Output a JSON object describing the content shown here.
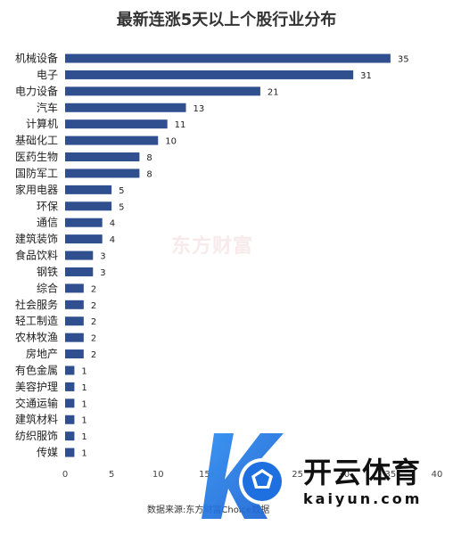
{
  "chart_data": {
    "type": "bar",
    "orientation": "horizontal",
    "title": "最新连涨5天以上个股行业分布",
    "categories": [
      "机械设备",
      "电子",
      "电力设备",
      "汽车",
      "计算机",
      "基础化工",
      "医药生物",
      "国防军工",
      "家用电器",
      "环保",
      "通信",
      "建筑装饰",
      "食品饮料",
      "钢铁",
      "综合",
      "社会服务",
      "轻工制造",
      "农林牧渔",
      "房地产",
      "有色金属",
      "美容护理",
      "交通运输",
      "建筑材料",
      "纺织服饰",
      "传媒"
    ],
    "values": [
      35,
      31,
      21,
      13,
      11,
      10,
      8,
      8,
      5,
      5,
      4,
      4,
      3,
      3,
      2,
      2,
      2,
      2,
      2,
      1,
      1,
      1,
      1,
      1,
      1
    ],
    "xlim": [
      0,
      40
    ],
    "xticks": [
      0,
      5,
      10,
      15,
      20,
      25,
      30,
      35,
      40
    ],
    "bar_color": "#2f4f8f",
    "grid": false,
    "legend": "none"
  },
  "source_note": "数据来源:东方财富Choice数据",
  "watermark_text": "东方财富",
  "brand": {
    "name": "开云体育",
    "domain": "kaiyun.com"
  }
}
